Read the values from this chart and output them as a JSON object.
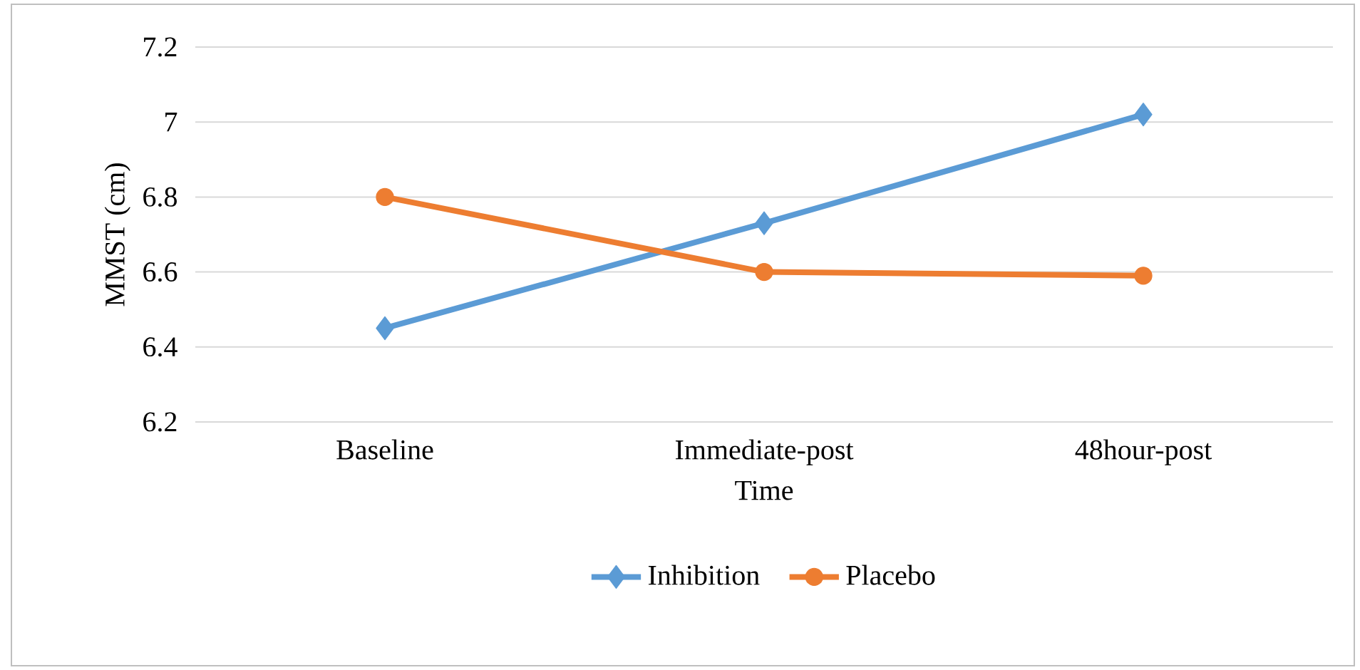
{
  "chart_data": {
    "type": "line",
    "xlabel": "Time",
    "ylabel": "MMST (cm)",
    "categories": [
      "Baseline",
      "Immediate-post",
      "48hour-post"
    ],
    "series": [
      {
        "name": "Inhibition",
        "color": "#5b9bd5",
        "marker": "diamond",
        "values": [
          6.45,
          6.73,
          7.02
        ]
      },
      {
        "name": "Placebo",
        "color": "#ed7d31",
        "marker": "circle",
        "values": [
          6.8,
          6.6,
          6.59
        ]
      }
    ],
    "ylim": [
      6.2,
      7.2
    ],
    "yticks": [
      6.2,
      6.4,
      6.6,
      6.8,
      7,
      7.2
    ],
    "grid": "y",
    "legend": "bottom",
    "line_style": "solid"
  }
}
